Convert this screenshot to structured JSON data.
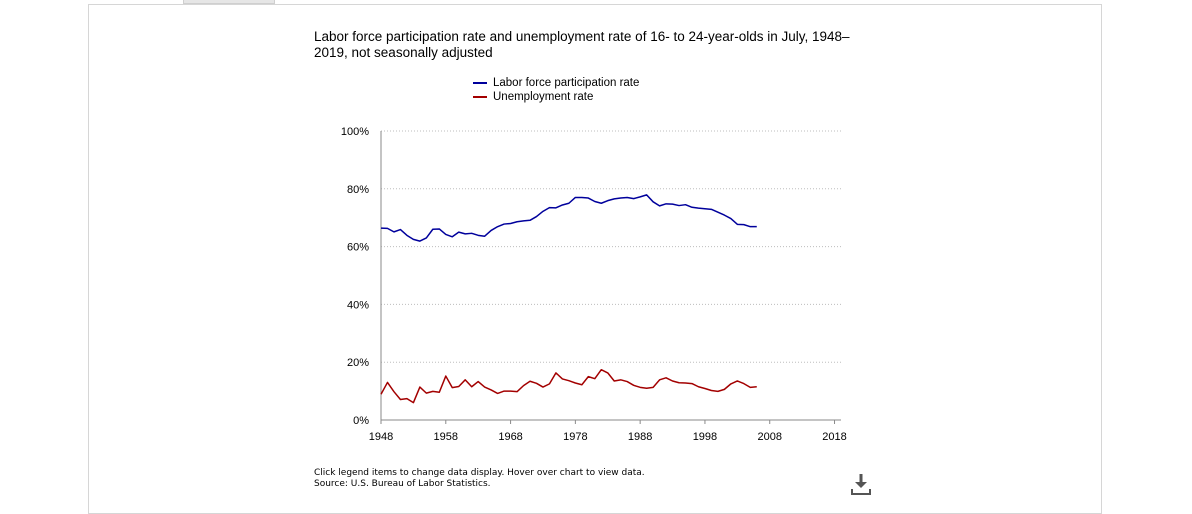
{
  "chart_data": {
    "type": "line",
    "title": "Labor force participation rate and unemployment rate of 16- to 24-year-olds in July, 1948–2019, not seasonally adjusted",
    "xlabel": "",
    "ylabel": "",
    "x_ticks": [
      "1948",
      "1958",
      "1968",
      "1978",
      "1988",
      "1998",
      "2008",
      "2018"
    ],
    "y_ticks": [
      "0%",
      "20%",
      "40%",
      "60%",
      "80%",
      "100%"
    ],
    "xlim": [
      1948,
      2019
    ],
    "ylim": [
      0,
      100
    ],
    "grid": true,
    "legend_placement": "top-center",
    "x": [
      1948,
      1949,
      1950,
      1951,
      1952,
      1953,
      1954,
      1955,
      1956,
      1957,
      1958,
      1959,
      1960,
      1961,
      1962,
      1963,
      1964,
      1965,
      1966,
      1967,
      1968,
      1969,
      1970,
      1971,
      1972,
      1973,
      1974,
      1975,
      1976,
      1977,
      1978,
      1979,
      1980,
      1981,
      1982,
      1983,
      1984,
      1985,
      1986,
      1987,
      1988,
      1989,
      1990,
      1991,
      1992,
      1993,
      1994,
      1995,
      1996,
      1997,
      1998,
      1999,
      2000,
      2001,
      2002,
      2003,
      2004,
      2005,
      2006,
      2007,
      2008,
      2009,
      2010,
      2011,
      2012,
      2013,
      2014,
      2015,
      2016,
      2017,
      2018,
      2019
    ],
    "series": [
      {
        "name": "Labor force participation rate",
        "color": "#00009c",
        "values": [
          66.4,
          66.3,
          65.1,
          65.9,
          63.9,
          62.5,
          61.9,
          63.0,
          66.0,
          66.1,
          64.2,
          63.4,
          65.0,
          64.4,
          64.6,
          63.9,
          63.6,
          65.6,
          66.9,
          67.8,
          68.0,
          68.6,
          68.9,
          69.1,
          70.4,
          72.2,
          73.5,
          73.4,
          74.4,
          75.0,
          77.0,
          77.0,
          76.8,
          75.6,
          75.0,
          75.9,
          76.5,
          76.8,
          77.0,
          76.6,
          77.2,
          77.9,
          75.5,
          74.1,
          74.8,
          74.7,
          74.2,
          74.5,
          73.6,
          73.3,
          73.1,
          72.9,
          71.9,
          70.9,
          69.7,
          67.7,
          67.6,
          66.9,
          66.9,
          null,
          null,
          null,
          null,
          null,
          null,
          null,
          null,
          null,
          null,
          null,
          null,
          null
        ]
      },
      {
        "name": "Unemployment rate",
        "color": "#a30000",
        "values": [
          8.9,
          13.0,
          9.8,
          7.1,
          7.4,
          6.0,
          11.4,
          9.3,
          9.9,
          9.6,
          15.2,
          11.2,
          11.6,
          13.9,
          11.5,
          13.3,
          11.4,
          10.4,
          9.2,
          10.0,
          10.0,
          9.8,
          11.9,
          13.4,
          12.7,
          11.4,
          12.5,
          16.3,
          14.2,
          13.6,
          12.8,
          12.2,
          15.0,
          14.3,
          17.4,
          16.3,
          13.5,
          13.9,
          13.3,
          12.0,
          11.3,
          11.0,
          11.3,
          13.9,
          14.6,
          13.5,
          12.9,
          12.8,
          12.6,
          11.5,
          10.9,
          10.2,
          9.9,
          10.6,
          12.5,
          13.5,
          12.6,
          11.3,
          11.5,
          null,
          null,
          null,
          null,
          null,
          null,
          null,
          null,
          null,
          null,
          null,
          null,
          null
        ]
      }
    ]
  },
  "footer": {
    "note_line1": "Click legend items to change data display. Hover over chart to view data.",
    "note_line2": "Source: U.S. Bureau of Labor Statistics."
  },
  "icons": {
    "download": "download-icon"
  }
}
